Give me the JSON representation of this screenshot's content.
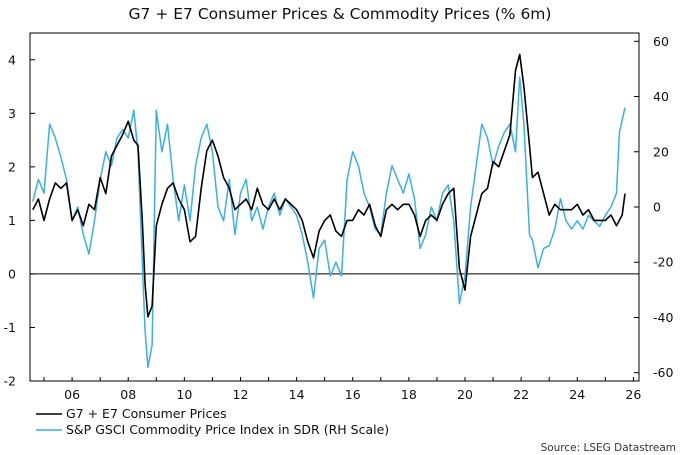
{
  "chart_data": {
    "type": "line",
    "title": "G7 + E7 Consumer Prices & Commodity Prices (% 6m)",
    "source": "Source: LSEG Datastream",
    "x_ticks": [
      "06",
      "08",
      "10",
      "12",
      "14",
      "16",
      "18",
      "20",
      "22",
      "24",
      "26"
    ],
    "left_axis": {
      "ylim": [
        -2,
        4.5
      ],
      "ticks": [
        "-2",
        "-1",
        "0",
        "1",
        "2",
        "3",
        "4"
      ]
    },
    "right_axis": {
      "ylim": [
        -63,
        63
      ],
      "ticks": [
        "-60",
        "-40",
        "-20",
        "0",
        "20",
        "40",
        "60"
      ]
    },
    "colors": {
      "cpi": "#000000",
      "commodity": "#39b0e8"
    },
    "legend": [
      "G7 + E7 Consumer Prices",
      "S&P GSCI Commodity Price Index in SDR (RH Scale)"
    ],
    "series": [
      {
        "name": "G7 + E7 Consumer Prices",
        "axis": "left",
        "points": [
          [
            2005.1,
            1.2
          ],
          [
            2005.3,
            1.4
          ],
          [
            2005.5,
            1.0
          ],
          [
            2005.7,
            1.4
          ],
          [
            2005.9,
            1.7
          ],
          [
            2006.1,
            1.6
          ],
          [
            2006.3,
            1.7
          ],
          [
            2006.5,
            1.0
          ],
          [
            2006.7,
            1.2
          ],
          [
            2006.9,
            0.9
          ],
          [
            2007.1,
            1.3
          ],
          [
            2007.3,
            1.2
          ],
          [
            2007.5,
            1.8
          ],
          [
            2007.7,
            1.5
          ],
          [
            2007.9,
            2.2
          ],
          [
            2008.1,
            2.4
          ],
          [
            2008.3,
            2.6
          ],
          [
            2008.5,
            2.85
          ],
          [
            2008.7,
            2.5
          ],
          [
            2008.85,
            2.4
          ],
          [
            2009.0,
            1.0
          ],
          [
            2009.1,
            -0.2
          ],
          [
            2009.2,
            -0.8
          ],
          [
            2009.35,
            -0.6
          ],
          [
            2009.5,
            0.9
          ],
          [
            2009.7,
            1.3
          ],
          [
            2009.9,
            1.6
          ],
          [
            2010.1,
            1.7
          ],
          [
            2010.3,
            1.4
          ],
          [
            2010.5,
            1.2
          ],
          [
            2010.7,
            0.6
          ],
          [
            2010.9,
            0.7
          ],
          [
            2011.1,
            1.6
          ],
          [
            2011.3,
            2.3
          ],
          [
            2011.5,
            2.5
          ],
          [
            2011.7,
            2.2
          ],
          [
            2011.9,
            1.8
          ],
          [
            2012.1,
            1.6
          ],
          [
            2012.3,
            1.2
          ],
          [
            2012.5,
            1.3
          ],
          [
            2012.7,
            1.4
          ],
          [
            2012.9,
            1.2
          ],
          [
            2013.1,
            1.6
          ],
          [
            2013.3,
            1.3
          ],
          [
            2013.5,
            1.2
          ],
          [
            2013.7,
            1.4
          ],
          [
            2013.9,
            1.2
          ],
          [
            2014.1,
            1.4
          ],
          [
            2014.3,
            1.3
          ],
          [
            2014.5,
            1.2
          ],
          [
            2014.7,
            1.0
          ],
          [
            2014.9,
            0.6
          ],
          [
            2015.1,
            0.3
          ],
          [
            2015.3,
            0.8
          ],
          [
            2015.5,
            1.0
          ],
          [
            2015.7,
            1.1
          ],
          [
            2015.9,
            0.8
          ],
          [
            2016.1,
            0.7
          ],
          [
            2016.3,
            1.0
          ],
          [
            2016.5,
            1.0
          ],
          [
            2016.7,
            1.2
          ],
          [
            2016.9,
            1.1
          ],
          [
            2017.1,
            1.3
          ],
          [
            2017.3,
            0.9
          ],
          [
            2017.5,
            0.7
          ],
          [
            2017.7,
            1.2
          ],
          [
            2017.9,
            1.3
          ],
          [
            2018.1,
            1.2
          ],
          [
            2018.3,
            1.3
          ],
          [
            2018.5,
            1.3
          ],
          [
            2018.7,
            1.1
          ],
          [
            2018.9,
            0.7
          ],
          [
            2019.1,
            1.0
          ],
          [
            2019.3,
            1.1
          ],
          [
            2019.5,
            1.0
          ],
          [
            2019.7,
            1.3
          ],
          [
            2019.9,
            1.5
          ],
          [
            2020.1,
            1.6
          ],
          [
            2020.3,
            0.1
          ],
          [
            2020.5,
            -0.3
          ],
          [
            2020.7,
            0.7
          ],
          [
            2020.9,
            1.1
          ],
          [
            2021.1,
            1.5
          ],
          [
            2021.3,
            1.6
          ],
          [
            2021.5,
            2.1
          ],
          [
            2021.7,
            2.0
          ],
          [
            2021.9,
            2.3
          ],
          [
            2022.1,
            2.6
          ],
          [
            2022.3,
            3.8
          ],
          [
            2022.45,
            4.1
          ],
          [
            2022.6,
            3.5
          ],
          [
            2022.8,
            2.4
          ],
          [
            2022.9,
            1.8
          ],
          [
            2023.1,
            1.9
          ],
          [
            2023.3,
            1.5
          ],
          [
            2023.5,
            1.1
          ],
          [
            2023.7,
            1.3
          ],
          [
            2023.9,
            1.2
          ],
          [
            2024.1,
            1.2
          ],
          [
            2024.3,
            1.2
          ],
          [
            2024.5,
            1.3
          ],
          [
            2024.7,
            1.1
          ],
          [
            2024.9,
            1.2
          ],
          [
            2025.1,
            1.0
          ],
          [
            2025.3,
            1.0
          ],
          [
            2025.5,
            1.0
          ],
          [
            2025.7,
            1.1
          ],
          [
            2025.9,
            0.9
          ],
          [
            2026.1,
            1.1
          ],
          [
            2026.2,
            1.5
          ]
        ]
      },
      {
        "name": "S&P GSCI Commodity Price Index in SDR (RH Scale)",
        "axis": "right",
        "points": [
          [
            2005.1,
            2
          ],
          [
            2005.3,
            10
          ],
          [
            2005.5,
            5
          ],
          [
            2005.7,
            30
          ],
          [
            2005.9,
            25
          ],
          [
            2006.1,
            18
          ],
          [
            2006.3,
            10
          ],
          [
            2006.5,
            -5
          ],
          [
            2006.7,
            0
          ],
          [
            2006.9,
            -10
          ],
          [
            2007.1,
            -17
          ],
          [
            2007.3,
            -5
          ],
          [
            2007.5,
            10
          ],
          [
            2007.7,
            20
          ],
          [
            2007.9,
            15
          ],
          [
            2008.1,
            25
          ],
          [
            2008.3,
            28
          ],
          [
            2008.5,
            25
          ],
          [
            2008.7,
            35
          ],
          [
            2008.85,
            20
          ],
          [
            2009.0,
            -20
          ],
          [
            2009.1,
            -45
          ],
          [
            2009.2,
            -58
          ],
          [
            2009.35,
            -50
          ],
          [
            2009.5,
            35
          ],
          [
            2009.7,
            20
          ],
          [
            2009.9,
            30
          ],
          [
            2010.1,
            10
          ],
          [
            2010.3,
            -5
          ],
          [
            2010.5,
            8
          ],
          [
            2010.7,
            -5
          ],
          [
            2010.9,
            15
          ],
          [
            2011.1,
            25
          ],
          [
            2011.3,
            30
          ],
          [
            2011.5,
            20
          ],
          [
            2011.7,
            0
          ],
          [
            2011.9,
            -5
          ],
          [
            2012.1,
            10
          ],
          [
            2012.3,
            -10
          ],
          [
            2012.5,
            5
          ],
          [
            2012.7,
            10
          ],
          [
            2012.9,
            -5
          ],
          [
            2013.1,
            0
          ],
          [
            2013.3,
            -8
          ],
          [
            2013.5,
            0
          ],
          [
            2013.7,
            5
          ],
          [
            2013.9,
            -3
          ],
          [
            2014.1,
            3
          ],
          [
            2014.3,
            0
          ],
          [
            2014.5,
            -3
          ],
          [
            2014.7,
            -10
          ],
          [
            2014.9,
            -20
          ],
          [
            2015.1,
            -33
          ],
          [
            2015.3,
            -15
          ],
          [
            2015.5,
            -12
          ],
          [
            2015.7,
            -25
          ],
          [
            2015.9,
            -20
          ],
          [
            2016.1,
            -25
          ],
          [
            2016.3,
            10
          ],
          [
            2016.5,
            20
          ],
          [
            2016.7,
            15
          ],
          [
            2016.9,
            5
          ],
          [
            2017.1,
            0
          ],
          [
            2017.3,
            -8
          ],
          [
            2017.5,
            -10
          ],
          [
            2017.7,
            5
          ],
          [
            2017.9,
            15
          ],
          [
            2018.1,
            10
          ],
          [
            2018.3,
            5
          ],
          [
            2018.5,
            12
          ],
          [
            2018.7,
            3
          ],
          [
            2018.9,
            -15
          ],
          [
            2019.1,
            -10
          ],
          [
            2019.3,
            0
          ],
          [
            2019.5,
            -5
          ],
          [
            2019.7,
            5
          ],
          [
            2019.9,
            8
          ],
          [
            2020.1,
            -5
          ],
          [
            2020.3,
            -35
          ],
          [
            2020.5,
            -25
          ],
          [
            2020.7,
            0
          ],
          [
            2020.9,
            15
          ],
          [
            2021.1,
            30
          ],
          [
            2021.3,
            25
          ],
          [
            2021.5,
            15
          ],
          [
            2021.7,
            22
          ],
          [
            2021.9,
            27
          ],
          [
            2022.1,
            30
          ],
          [
            2022.3,
            20
          ],
          [
            2022.45,
            47
          ],
          [
            2022.6,
            30
          ],
          [
            2022.8,
            -10
          ],
          [
            2022.9,
            -12
          ],
          [
            2023.1,
            -22
          ],
          [
            2023.3,
            -15
          ],
          [
            2023.5,
            -14
          ],
          [
            2023.7,
            -8
          ],
          [
            2023.9,
            3
          ],
          [
            2024.1,
            -5
          ],
          [
            2024.3,
            -8
          ],
          [
            2024.5,
            -5
          ],
          [
            2024.7,
            -8
          ],
          [
            2024.9,
            -3
          ],
          [
            2025.1,
            -5
          ],
          [
            2025.3,
            -7
          ],
          [
            2025.5,
            -3
          ],
          [
            2025.7,
            0
          ],
          [
            2025.9,
            5
          ],
          [
            2026.0,
            27
          ],
          [
            2026.2,
            36
          ]
        ]
      }
    ]
  }
}
